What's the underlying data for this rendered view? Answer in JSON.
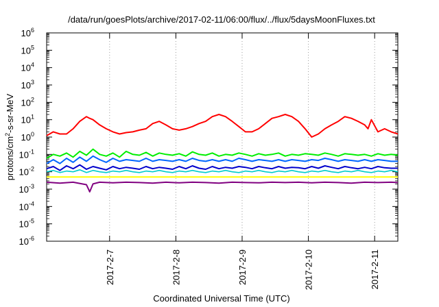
{
  "chart_data": {
    "type": "line",
    "title": "/data/run/goesPlots/archive/2017-02-11/06:00/flux/../flux/5daysMoonFluxes.txt",
    "xlabel": "Coordinated Universal Time (UTC)",
    "ylabel": {
      "pre": "protons/cm",
      "sup": "2",
      "post": "-s-sr-MeV"
    },
    "yscale": "log",
    "ylim": [
      1e-06,
      1000000.0
    ],
    "x_domain": [
      0,
      5.3
    ],
    "y_ticks": [
      {
        "base": "10",
        "exp": "-6",
        "value": -6
      },
      {
        "base": "10",
        "exp": "-5",
        "value": -5
      },
      {
        "base": "10",
        "exp": "-4",
        "value": -4
      },
      {
        "base": "10",
        "exp": "-3",
        "value": -3
      },
      {
        "base": "10",
        "exp": "-2",
        "value": -2
      },
      {
        "base": "10",
        "exp": "-1",
        "value": -1
      },
      {
        "base": "10",
        "exp": "0",
        "value": 0
      },
      {
        "base": "10",
        "exp": "1",
        "value": 1
      },
      {
        "base": "10",
        "exp": "2",
        "value": 2
      },
      {
        "base": "10",
        "exp": "3",
        "value": 3
      },
      {
        "base": "10",
        "exp": "4",
        "value": 4
      },
      {
        "base": "10",
        "exp": "5",
        "value": 5
      },
      {
        "base": "10",
        "exp": "6",
        "value": 6
      }
    ],
    "x_ticks": [
      {
        "label": "2017-2-7",
        "value": 0.95
      },
      {
        "label": "2017-2-8",
        "value": 1.95
      },
      {
        "label": "2017-2-9",
        "value": 2.95
      },
      {
        "label": "2017-2-10",
        "value": 3.95
      },
      {
        "label": "2017-2-11",
        "value": 4.95
      }
    ],
    "grid": "vertical dotted at date ticks",
    "legend": "none",
    "series": [
      {
        "color": "#ff0000",
        "width": 2,
        "x": [
          0,
          0.1,
          0.2,
          0.3,
          0.4,
          0.5,
          0.6,
          0.65,
          0.7,
          0.8,
          0.9,
          1.0,
          1.1,
          1.2,
          1.3,
          1.4,
          1.5,
          1.6,
          1.7,
          1.8,
          1.9,
          2.0,
          2.1,
          2.2,
          2.3,
          2.4,
          2.5,
          2.6,
          2.7,
          2.8,
          2.9,
          3.0,
          3.1,
          3.2,
          3.3,
          3.4,
          3.5,
          3.6,
          3.7,
          3.8,
          3.9,
          4.0,
          4.1,
          4.2,
          4.3,
          4.4,
          4.5,
          4.6,
          4.7,
          4.8,
          4.85,
          4.9,
          5.0,
          5.1,
          5.2,
          5.3
        ],
        "y": [
          1.2,
          2,
          1.5,
          1.5,
          3,
          8,
          15,
          12,
          10,
          5,
          3,
          2,
          1.5,
          1.8,
          2,
          2.5,
          3,
          6,
          8,
          5,
          3,
          2.5,
          3,
          4,
          6,
          8,
          15,
          20,
          15,
          8,
          4,
          2,
          2,
          3,
          6,
          12,
          15,
          20,
          15,
          8,
          3,
          1,
          1.5,
          3,
          5,
          8,
          15,
          12,
          8,
          5,
          3,
          10,
          2,
          3,
          2,
          1.5
        ]
      },
      {
        "color": "#00ee00",
        "width": 2,
        "x": [
          0,
          0.1,
          0.2,
          0.3,
          0.4,
          0.5,
          0.6,
          0.7,
          0.8,
          0.9,
          1.0,
          1.1,
          1.2,
          1.3,
          1.4,
          1.5,
          1.6,
          1.7,
          1.8,
          1.9,
          2.0,
          2.1,
          2.2,
          2.3,
          2.4,
          2.5,
          2.6,
          2.7,
          2.8,
          2.9,
          3.0,
          3.1,
          3.2,
          3.3,
          3.4,
          3.5,
          3.6,
          3.7,
          3.8,
          3.9,
          4.0,
          4.1,
          4.2,
          4.3,
          4.4,
          4.5,
          4.6,
          4.7,
          4.8,
          4.9,
          5.0,
          5.1,
          5.2,
          5.3
        ],
        "y": [
          0.06,
          0.1,
          0.08,
          0.12,
          0.07,
          0.15,
          0.09,
          0.2,
          0.1,
          0.08,
          0.12,
          0.07,
          0.15,
          0.1,
          0.09,
          0.13,
          0.08,
          0.12,
          0.1,
          0.09,
          0.11,
          0.08,
          0.14,
          0.1,
          0.09,
          0.12,
          0.08,
          0.1,
          0.09,
          0.12,
          0.1,
          0.08,
          0.11,
          0.09,
          0.1,
          0.12,
          0.08,
          0.1,
          0.09,
          0.11,
          0.1,
          0.09,
          0.12,
          0.1,
          0.08,
          0.11,
          0.1,
          0.09,
          0.1,
          0.08,
          0.11,
          0.09,
          0.1,
          0.09
        ]
      },
      {
        "color": "#0066ff",
        "width": 2,
        "x": [
          0,
          0.1,
          0.2,
          0.3,
          0.4,
          0.5,
          0.6,
          0.7,
          0.8,
          0.9,
          1.0,
          1.1,
          1.2,
          1.3,
          1.4,
          1.5,
          1.6,
          1.7,
          1.8,
          1.9,
          2.0,
          2.1,
          2.2,
          2.3,
          2.4,
          2.5,
          2.6,
          2.7,
          2.8,
          2.9,
          3.0,
          3.1,
          3.2,
          3.3,
          3.4,
          3.5,
          3.6,
          3.7,
          3.8,
          3.9,
          4.0,
          4.1,
          4.2,
          4.3,
          4.4,
          4.5,
          4.6,
          4.7,
          4.8,
          4.9,
          5.0,
          5.1,
          5.2,
          5.3
        ],
        "y": [
          0.03,
          0.05,
          0.03,
          0.06,
          0.035,
          0.07,
          0.04,
          0.08,
          0.05,
          0.035,
          0.06,
          0.04,
          0.05,
          0.045,
          0.04,
          0.06,
          0.04,
          0.05,
          0.045,
          0.04,
          0.05,
          0.04,
          0.06,
          0.045,
          0.04,
          0.05,
          0.04,
          0.05,
          0.04,
          0.06,
          0.05,
          0.04,
          0.05,
          0.045,
          0.04,
          0.05,
          0.04,
          0.05,
          0.045,
          0.04,
          0.05,
          0.045,
          0.06,
          0.05,
          0.04,
          0.05,
          0.045,
          0.04,
          0.05,
          0.04,
          0.05,
          0.045,
          0.04,
          0.04
        ]
      },
      {
        "color": "#00cccc",
        "width": 1.6,
        "x": [
          0,
          0.1,
          0.2,
          0.3,
          0.4,
          0.5,
          0.6,
          0.7,
          0.8,
          0.9,
          1.0,
          1.1,
          1.2,
          1.3,
          1.4,
          1.5,
          1.6,
          1.7,
          1.8,
          1.9,
          2.0,
          2.1,
          2.2,
          2.3,
          2.4,
          2.5,
          2.6,
          2.7,
          2.8,
          2.9,
          3.0,
          3.1,
          3.2,
          3.3,
          3.4,
          3.5,
          3.6,
          3.7,
          3.8,
          3.9,
          4.0,
          4.1,
          4.2,
          4.3,
          4.4,
          4.5,
          4.6,
          4.7,
          4.8,
          4.9,
          5.0,
          5.1,
          5.2,
          5.3
        ],
        "y": [
          0.01,
          0.012,
          0.009,
          0.011,
          0.01,
          0.013,
          0.009,
          0.012,
          0.01,
          0.009,
          0.011,
          0.01,
          0.012,
          0.01,
          0.009,
          0.011,
          0.01,
          0.012,
          0.01,
          0.009,
          0.011,
          0.01,
          0.012,
          0.01,
          0.009,
          0.011,
          0.01,
          0.012,
          0.01,
          0.009,
          0.011,
          0.01,
          0.012,
          0.01,
          0.009,
          0.011,
          0.01,
          0.012,
          0.01,
          0.009,
          0.011,
          0.01,
          0.012,
          0.01,
          0.009,
          0.011,
          0.01,
          0.012,
          0.01,
          0.009,
          0.011,
          0.01,
          0.012,
          0.01
        ]
      },
      {
        "color": "#0000cc",
        "width": 2,
        "x": [
          0,
          0.1,
          0.2,
          0.3,
          0.4,
          0.5,
          0.6,
          0.7,
          0.8,
          0.9,
          1.0,
          1.1,
          1.2,
          1.3,
          1.4,
          1.5,
          1.6,
          1.7,
          1.8,
          1.9,
          2.0,
          2.1,
          2.2,
          2.3,
          2.4,
          2.5,
          2.6,
          2.7,
          2.8,
          2.9,
          3.0,
          3.1,
          3.2,
          3.3,
          3.4,
          3.5,
          3.6,
          3.7,
          3.8,
          3.9,
          4.0,
          4.1,
          4.2,
          4.3,
          4.4,
          4.5,
          4.6,
          4.7,
          4.8,
          4.9,
          5.0,
          5.1,
          5.2,
          5.3
        ],
        "y": [
          0.015,
          0.02,
          0.012,
          0.022,
          0.015,
          0.025,
          0.014,
          0.02,
          0.016,
          0.013,
          0.02,
          0.015,
          0.018,
          0.016,
          0.014,
          0.02,
          0.015,
          0.018,
          0.016,
          0.014,
          0.02,
          0.015,
          0.022,
          0.016,
          0.014,
          0.02,
          0.015,
          0.018,
          0.016,
          0.02,
          0.018,
          0.015,
          0.02,
          0.017,
          0.015,
          0.02,
          0.016,
          0.018,
          0.017,
          0.015,
          0.02,
          0.016,
          0.022,
          0.018,
          0.015,
          0.02,
          0.017,
          0.015,
          0.018,
          0.015,
          0.02,
          0.017,
          0.016,
          0.016
        ]
      },
      {
        "color": "#ffff00",
        "width": 2,
        "x": [
          0,
          0.5,
          1.0,
          1.5,
          2.0,
          2.5,
          3.0,
          3.5,
          4.0,
          4.5,
          5.0,
          5.3
        ],
        "y": [
          0.005,
          0.005,
          0.005,
          0.005,
          0.005,
          0.005,
          0.005,
          0.005,
          0.005,
          0.005,
          0.005,
          0.005
        ]
      },
      {
        "color": "#800080",
        "width": 2,
        "x": [
          0,
          0.2,
          0.4,
          0.6,
          0.65,
          0.7,
          0.8,
          1.0,
          1.2,
          1.4,
          1.6,
          1.8,
          2.0,
          2.2,
          2.4,
          2.6,
          2.8,
          3.0,
          3.2,
          3.4,
          3.6,
          3.8,
          4.0,
          4.2,
          4.4,
          4.6,
          4.8,
          5.0,
          5.2,
          5.3
        ],
        "y": [
          0.0025,
          0.0022,
          0.0025,
          0.0018,
          0.0007,
          0.002,
          0.0025,
          0.0023,
          0.0025,
          0.0024,
          0.0022,
          0.0025,
          0.0023,
          0.0025,
          0.0024,
          0.0022,
          0.0025,
          0.0024,
          0.0023,
          0.0025,
          0.0024,
          0.0025,
          0.0023,
          0.0025,
          0.0024,
          0.0022,
          0.0025,
          0.0024,
          0.0025,
          0.0024
        ]
      }
    ]
  }
}
